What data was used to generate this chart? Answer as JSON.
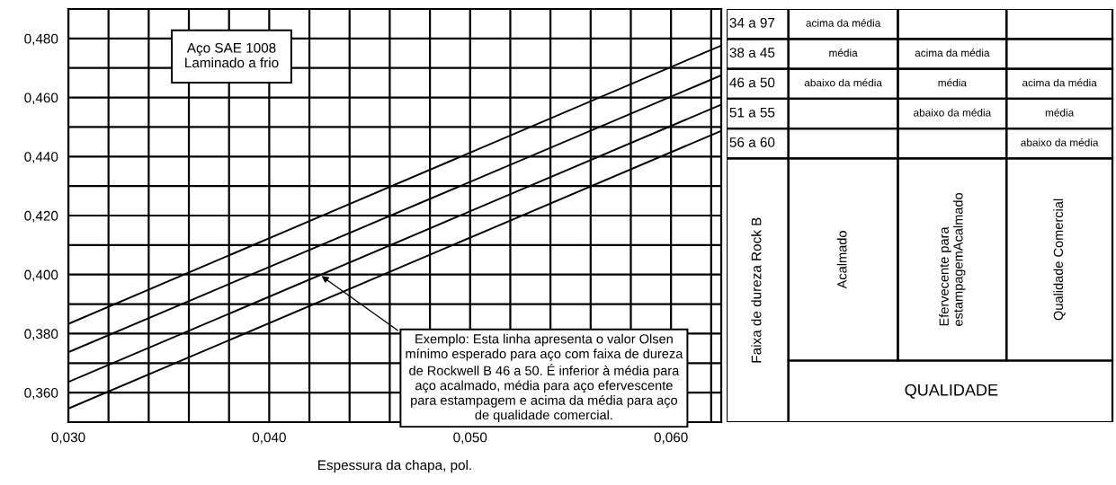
{
  "chart_data": [
    {
      "type": "line",
      "xlabel": "Espessura da chapa, pol.",
      "x": [
        0.03,
        0.0625
      ],
      "series": [
        {
          "color": "#000000",
          "values": [
            0.3833,
            0.4776
          ]
        },
        {
          "color": "#000000",
          "values": [
            0.3737,
            0.4675
          ]
        },
        {
          "color": "#000000",
          "values": [
            0.3636,
            0.4576
          ]
        },
        {
          "color": "#000000",
          "values": [
            0.3546,
            0.4487
          ]
        }
      ],
      "xlim": [
        0.03,
        0.0625
      ],
      "ylim": [
        0.35,
        0.49
      ],
      "xticks": [
        {
          "value": 0.03,
          "label": "0,030"
        },
        {
          "value": 0.032,
          "label": null
        },
        {
          "value": 0.034,
          "label": null
        },
        {
          "value": 0.036,
          "label": null
        },
        {
          "value": 0.038,
          "label": null
        },
        {
          "value": 0.04,
          "label": "0,040"
        },
        {
          "value": 0.042,
          "label": null
        },
        {
          "value": 0.044,
          "label": null
        },
        {
          "value": 0.046,
          "label": null
        },
        {
          "value": 0.048,
          "label": null
        },
        {
          "value": 0.05,
          "label": "0,050"
        },
        {
          "value": 0.052,
          "label": null
        },
        {
          "value": 0.054,
          "label": null
        },
        {
          "value": 0.056,
          "label": null
        },
        {
          "value": 0.058,
          "label": null
        },
        {
          "value": 0.06,
          "label": "0,060"
        },
        {
          "value": 0.062,
          "label": null
        }
      ],
      "yticks": [
        {
          "value": 0.35,
          "label": null
        },
        {
          "value": 0.36,
          "label": "0,360"
        },
        {
          "value": 0.37,
          "label": null
        },
        {
          "value": 0.38,
          "label": "0,380"
        },
        {
          "value": 0.39,
          "label": null
        },
        {
          "value": 0.4,
          "label": "0,400"
        },
        {
          "value": 0.41,
          "label": null
        },
        {
          "value": 0.42,
          "label": "0,420"
        },
        {
          "value": 0.43,
          "label": null
        },
        {
          "value": 0.44,
          "label": "0,440"
        },
        {
          "value": 0.45,
          "label": null
        },
        {
          "value": 0.46,
          "label": "0,460"
        },
        {
          "value": 0.47,
          "label": null
        },
        {
          "value": 0.48,
          "label": "0,480"
        }
      ],
      "grid": true,
      "marker": "none",
      "line_style": "solid",
      "annotations": [
        "Aço SAE 1008\nLaminado a frio",
        {
          "text": "Exemplo: Esta linha apresenta o valor Olsen\nmínimo esperado para aço com faixa de dureza\nde Rockwell B 46 a 50. É inferior à média para\naço acalmado, média para aço efervescente\npara estampagem e acima da média para aço\nde qualidade comercial.",
          "x": 0.0425,
          "y": 0.4
        }
      ]
    },
    {
      "type": "other",
      "ylabel": "Faixa de dureza Rock B",
      "xlabel": "QUALIDADE",
      "categories": [
        "Acalmado",
        "Efervecente para\nestampagemAcalmado",
        "Qualidade Comercial"
      ],
      "y_categories": [
        "34 a 97",
        "38 a 45",
        "46 a 50",
        "51 a 55",
        "56 a 60"
      ],
      "cell_labels": [
        [
          "acima da média",
          null,
          null
        ],
        [
          "média",
          "acima da média",
          null
        ],
        [
          "abaixo da média",
          "média",
          "acima da média"
        ],
        [
          null,
          "abaixo da média",
          "média"
        ],
        [
          null,
          null,
          "abaixo da média"
        ]
      ]
    }
  ]
}
